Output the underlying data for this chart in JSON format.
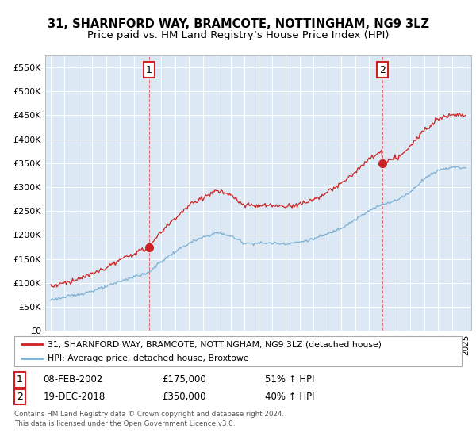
{
  "title": "31, SHARNFORD WAY, BRAMCOTE, NOTTINGHAM, NG9 3LZ",
  "subtitle": "Price paid vs. HM Land Registry’s House Price Index (HPI)",
  "ylim": [
    0,
    575000
  ],
  "yticks": [
    0,
    50000,
    100000,
    150000,
    200000,
    250000,
    300000,
    350000,
    400000,
    450000,
    500000,
    550000
  ],
  "ytick_labels": [
    "£0",
    "£50K",
    "£100K",
    "£150K",
    "£200K",
    "£250K",
    "£300K",
    "£350K",
    "£400K",
    "£450K",
    "£500K",
    "£550K"
  ],
  "xlim_start": 1994.6,
  "xlim_end": 2025.4,
  "background_color": "#dce9f5",
  "red_color": "#cc2222",
  "blue_color": "#7ab0d4",
  "marker1_x": 2002.1,
  "marker1_y": 175000,
  "marker2_x": 2018.96,
  "marker2_y": 350000,
  "marker1_date": "08-FEB-2002",
  "marker1_price": "£175,000",
  "marker1_pct": "51% ↑ HPI",
  "marker2_date": "19-DEC-2018",
  "marker2_price": "£350,000",
  "marker2_pct": "40% ↑ HPI",
  "legend_line1": "31, SHARNFORD WAY, BRAMCOTE, NOTTINGHAM, NG9 3LZ (detached house)",
  "legend_line2": "HPI: Average price, detached house, Broxtowe",
  "footnote1": "Contains HM Land Registry data © Crown copyright and database right 2024.",
  "footnote2": "This data is licensed under the Open Government Licence v3.0.",
  "title_fontsize": 10.5,
  "subtitle_fontsize": 9.5
}
